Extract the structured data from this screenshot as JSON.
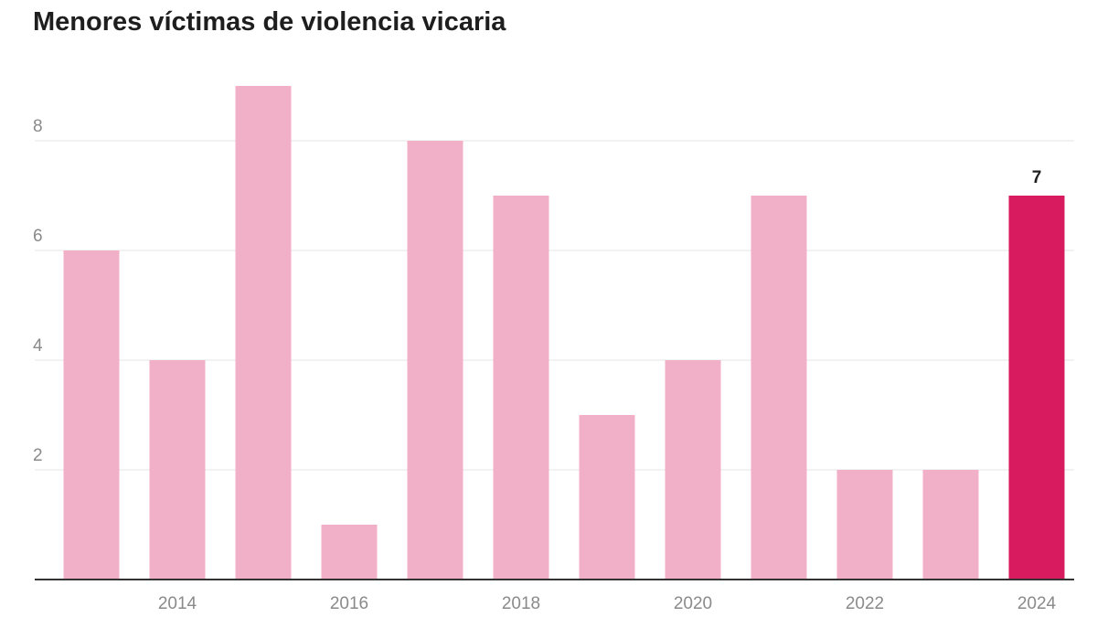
{
  "chart_data": {
    "type": "bar",
    "title": "Menores víctimas de violencia vicaria",
    "xlabel": "",
    "ylabel": "",
    "categories": [
      "2013",
      "2014",
      "2015",
      "2016",
      "2017",
      "2018",
      "2019",
      "2020",
      "2021",
      "2022",
      "2023",
      "2024"
    ],
    "values": [
      6,
      4,
      9,
      1,
      8,
      7,
      3,
      4,
      7,
      2,
      2,
      7
    ],
    "x_tick_labels": [
      "2014",
      "2016",
      "2018",
      "2020",
      "2022",
      "2024"
    ],
    "y_ticks": [
      2,
      4,
      6,
      8
    ],
    "ylim": [
      0,
      9
    ],
    "grid": true,
    "colors": {
      "bar": "#f2b0c8",
      "highlight_bar": "#d81b5e"
    },
    "highlight": {
      "category": "2024",
      "label": "7"
    }
  }
}
